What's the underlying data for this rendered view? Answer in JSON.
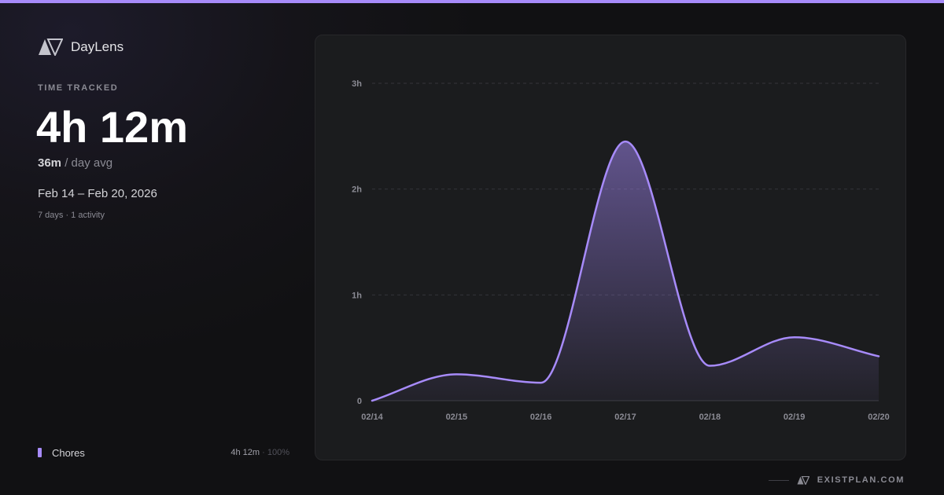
{
  "theme": {
    "accent": "#a78bfa",
    "background": "#111113",
    "panel": "#1b1c1e"
  },
  "brand": {
    "name": "DayLens",
    "logo_icon": "daylens-logo-icon"
  },
  "summary": {
    "kicker": "TIME TRACKED",
    "total": "4h 12m",
    "avg_value": "36m",
    "avg_label": "/ day avg",
    "range": "Feb 14 – Feb 20, 2026",
    "meta": "7 days · 1 activity"
  },
  "legend": [
    {
      "name": "Chores",
      "time": "4h 12m",
      "separator": "·",
      "percent": "100%",
      "color": "#a78bfa"
    }
  ],
  "footer": {
    "text": "EXISTPLAN.COM",
    "logo_icon": "existplan-logo-icon"
  },
  "chart_data": {
    "type": "area",
    "x": [
      "02/14",
      "02/15",
      "02/16",
      "02/17",
      "02/18",
      "02/19",
      "02/20"
    ],
    "series": [
      {
        "values": [
          0,
          0.25,
          0.17,
          2.45,
          0.33,
          0.6,
          0.42
        ],
        "color": "#a78bfa"
      }
    ],
    "y_ticks": [
      {
        "value": 0,
        "label": "0"
      },
      {
        "value": 1,
        "label": "1h"
      },
      {
        "value": 2,
        "label": "2h"
      },
      {
        "value": 3,
        "label": "3h"
      }
    ],
    "ylim": [
      0,
      3
    ],
    "grid": true,
    "smooth": true
  }
}
